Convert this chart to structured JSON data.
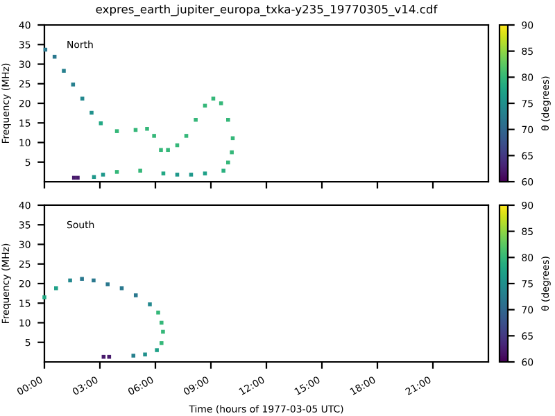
{
  "chart_data": [
    {
      "type": "scatter",
      "title": "expres_earth_jupiter_europa_txka-y235_19770305_v14.cdf",
      "ylabel": "Frequency (MHz)",
      "clabel": "θ (degrees)",
      "annotations": [
        "North"
      ],
      "marker": "square",
      "tick_labels": "y",
      "xlim": [
        0,
        24
      ],
      "xticks": [
        {
          "value": 0,
          "label": null
        },
        {
          "value": 3,
          "label": null
        },
        {
          "value": 6,
          "label": null
        },
        {
          "value": 9,
          "label": null
        },
        {
          "value": 12,
          "label": null
        },
        {
          "value": 15,
          "label": null
        },
        {
          "value": 18,
          "label": null
        },
        {
          "value": 21,
          "label": null
        }
      ],
      "ylim": [
        0,
        40
      ],
      "yticks": [
        5,
        10,
        15,
        20,
        25,
        30,
        35,
        40
      ],
      "clim": [
        60,
        90
      ],
      "cticks": [
        60,
        65,
        70,
        75,
        80,
        85,
        90
      ],
      "x": [
        0.05,
        0.55,
        1.05,
        1.55,
        2.05,
        2.55,
        3.05,
        3.92,
        4.93,
        5.55,
        5.93,
        6.3,
        6.68,
        7.18,
        7.67,
        8.18,
        8.68,
        9.13,
        9.55,
        9.93,
        10.18,
        10.13,
        9.93,
        9.68,
        8.68,
        7.93,
        7.18,
        6.43,
        5.18,
        3.92,
        3.17,
        2.68,
        1.6,
        1.8
      ],
      "values": [
        33.7,
        31.9,
        28.3,
        24.8,
        21.2,
        17.6,
        14.9,
        12.9,
        13.2,
        13.5,
        11.7,
        8.1,
        8.1,
        9.3,
        11.7,
        15.8,
        19.4,
        21.2,
        20,
        15.8,
        11.1,
        7.5,
        4.9,
        2.8,
        2.1,
        1.8,
        1.8,
        2.1,
        2.8,
        2.5,
        1.8,
        1.2,
        1.0,
        1.0
      ],
      "cvalues": [
        72,
        72,
        73,
        73,
        74,
        75,
        78,
        80,
        80,
        80,
        80,
        80,
        80,
        80,
        80,
        80,
        80,
        80,
        80,
        80,
        80,
        80,
        80,
        79,
        77,
        76,
        76,
        78,
        80,
        80,
        76,
        76,
        62,
        62
      ]
    },
    {
      "type": "scatter",
      "ylabel": "Frequency (MHz)",
      "xlabel": "Time (hours of 1977-03-05 UTC)",
      "clabel": "θ (degrees)",
      "annotations": [
        "South"
      ],
      "marker": "square",
      "xlim": [
        0,
        24
      ],
      "xticks": [
        {
          "value": 0,
          "label": "00:00"
        },
        {
          "value": 3,
          "label": "03:00"
        },
        {
          "value": 6,
          "label": "06:00"
        },
        {
          "value": 9,
          "label": "09:00"
        },
        {
          "value": 12,
          "label": "12:00"
        },
        {
          "value": 15,
          "label": "15:00"
        },
        {
          "value": 18,
          "label": "18:00"
        },
        {
          "value": 21,
          "label": "21:00"
        }
      ],
      "ylim": [
        0,
        40
      ],
      "yticks": [
        5,
        10,
        15,
        20,
        25,
        30,
        35,
        40
      ],
      "clim": [
        60,
        90
      ],
      "cticks": [
        60,
        65,
        70,
        75,
        80,
        85,
        90
      ],
      "x": [
        0,
        0.63,
        1.39,
        2.03,
        2.66,
        3.42,
        4.18,
        4.94,
        5.7,
        6.15,
        6.33,
        6.41,
        6.33,
        6.08,
        5.44,
        4.81,
        3.2,
        3.5
      ],
      "values": [
        16.5,
        18.8,
        20.8,
        21.2,
        20.8,
        19.8,
        18.8,
        17.0,
        14.7,
        12.6,
        10.0,
        7.7,
        4.8,
        3.0,
        1.9,
        1.6,
        1.3,
        1.3
      ],
      "cvalues": [
        78,
        77,
        74,
        72,
        72,
        72,
        72,
        72,
        74,
        80,
        80,
        80,
        80,
        77,
        75,
        73,
        62,
        62
      ]
    }
  ]
}
